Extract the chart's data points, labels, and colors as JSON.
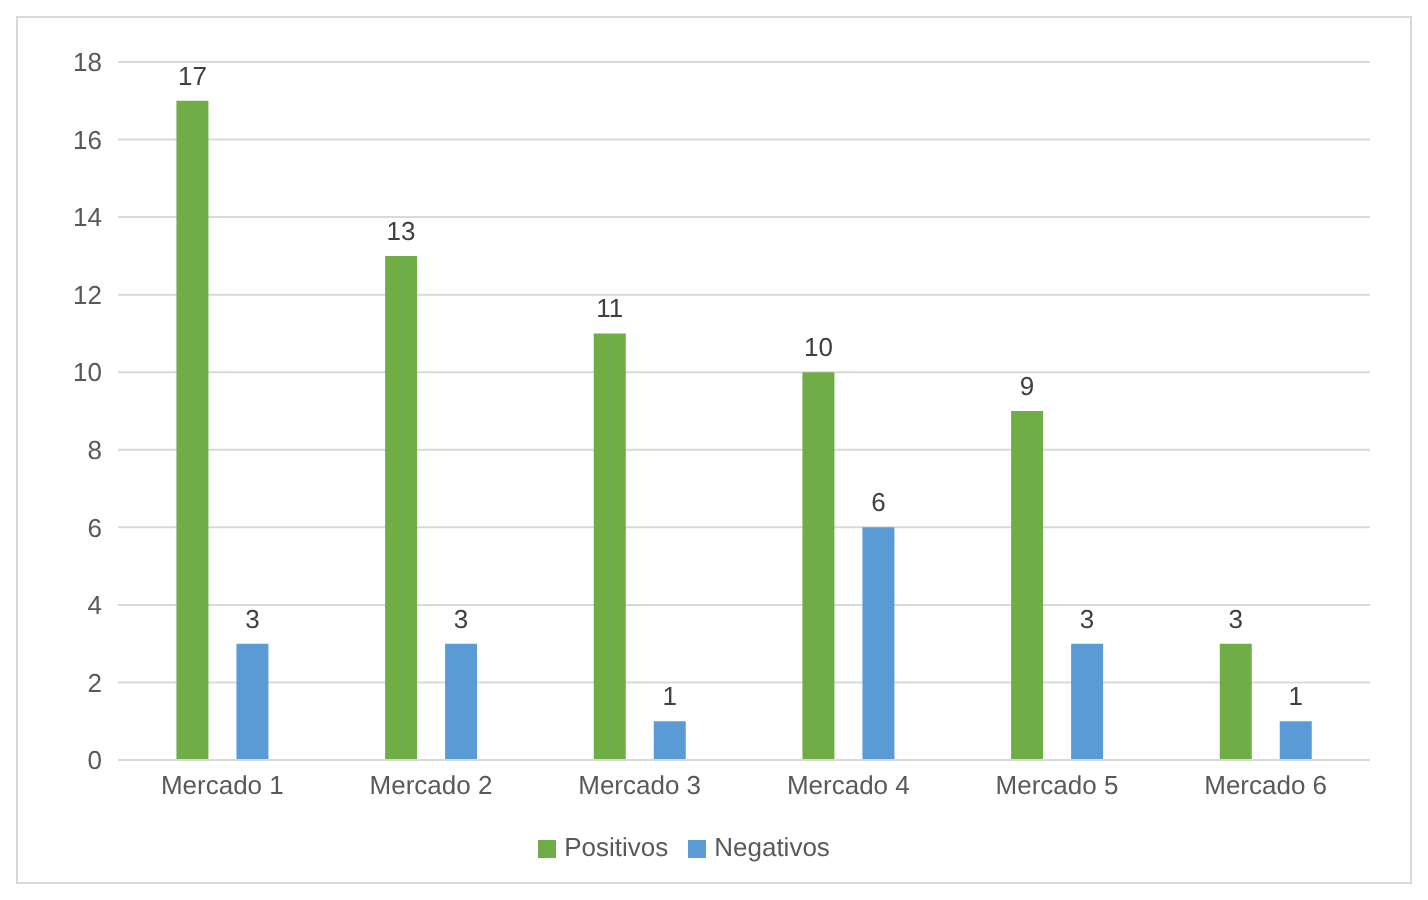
{
  "chart_data": {
    "type": "bar",
    "categories": [
      "Mercado 1",
      "Mercado 2",
      "Mercado 3",
      "Mercado 4",
      "Mercado 5",
      "Mercado 6"
    ],
    "series": [
      {
        "name": "Positivos",
        "color": "#70ad47",
        "values": [
          17,
          13,
          11,
          10,
          9,
          3
        ]
      },
      {
        "name": "Negativos",
        "color": "#5b9bd5",
        "values": [
          3,
          3,
          1,
          6,
          3,
          1
        ]
      }
    ],
    "ylim": [
      0,
      18
    ],
    "yticks": [
      0,
      2,
      4,
      6,
      8,
      10,
      12,
      14,
      16,
      18
    ],
    "grid": "y",
    "legend": "bottom",
    "data_labels": true
  }
}
